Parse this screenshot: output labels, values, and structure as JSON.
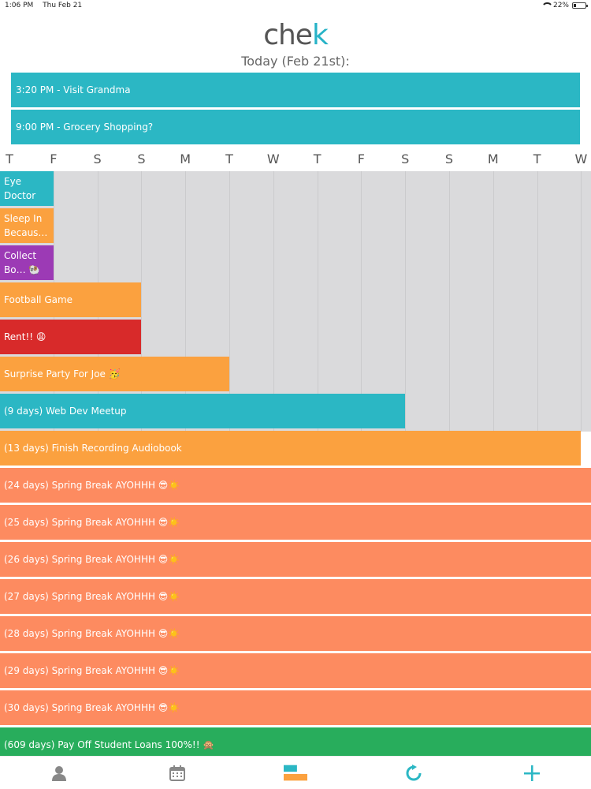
{
  "status_bar": {
    "time": "1:06 PM",
    "date": "Thu Feb 21",
    "battery": "22%"
  },
  "app": {
    "logo_text": "che",
    "logo_accent": "k"
  },
  "today_label": "Today (Feb 21st):",
  "today_events": [
    {
      "label": "3:20 PM - Visit Grandma"
    },
    {
      "label": "9:00 PM - Grocery Shopping?"
    }
  ],
  "days": [
    "T",
    "F",
    "S",
    "S",
    "M",
    "T",
    "W",
    "T",
    "F",
    "S",
    "S",
    "M",
    "T",
    "W"
  ],
  "events": [
    {
      "label": "Eye Doctor",
      "color": "#2bb7c4",
      "days": 1
    },
    {
      "label": "Sleep In Becaus…",
      "color": "#fba13f",
      "days": 1
    },
    {
      "label": "Collect Bo… 🐏",
      "color": "#9c3ab5",
      "days": 1
    },
    {
      "label": "Football Game",
      "color": "#fba13f",
      "days": 3
    },
    {
      "label": "Rent!! 😩",
      "color": "#d82a2a",
      "days": 3
    },
    {
      "label": "Surprise Party For Joe 🥳",
      "color": "#fba13f",
      "days": 5
    },
    {
      "label": "(9 days) Web Dev Meetup",
      "color": "#2bb7c4",
      "days": 9
    },
    {
      "label": "(13 days) Finish Recording Audiobook",
      "color": "#fba13f",
      "days": 13
    },
    {
      "label": "(24 days) Spring Break AYOHHH 😎☀️",
      "color": "#fd8b60",
      "days": 24
    },
    {
      "label": "(25 days) Spring Break AYOHHH 😎☀️",
      "color": "#fd8b60",
      "days": 25
    },
    {
      "label": "(26 days) Spring Break AYOHHH 😎☀️",
      "color": "#fd8b60",
      "days": 26
    },
    {
      "label": "(27 days) Spring Break AYOHHH 😎☀️",
      "color": "#fd8b60",
      "days": 27
    },
    {
      "label": "(28 days) Spring Break AYOHHH 😎☀️",
      "color": "#fd8b60",
      "days": 28
    },
    {
      "label": "(29 days) Spring Break AYOHHH 😎☀️",
      "color": "#fd8b60",
      "days": 29
    },
    {
      "label": "(30 days) Spring Break AYOHHH 😎☀️",
      "color": "#fd8b60",
      "days": 30
    },
    {
      "label": "(609 days) Pay Off Student Loans 100%!! 🙊",
      "color": "#28ad5c",
      "days": 609
    }
  ],
  "tabs": [
    {
      "name": "profile-icon"
    },
    {
      "name": "calendar-icon"
    },
    {
      "name": "timeline-icon",
      "active": true
    },
    {
      "name": "refresh-icon"
    },
    {
      "name": "add-icon"
    }
  ],
  "colors": {
    "accent": "#27b3c7",
    "tab_active_blue": "#2bb7c4",
    "tab_active_orange": "#fba13f",
    "tab_inactive": "#888888"
  }
}
